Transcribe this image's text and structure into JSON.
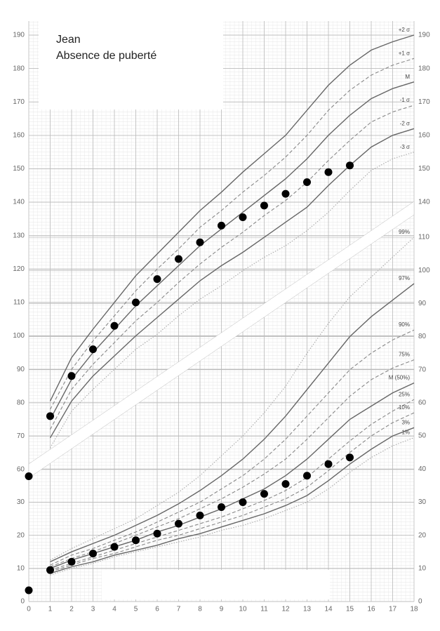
{
  "chart_data": [
    {
      "type": "line",
      "title": "Jean",
      "subtitle": "Absence de puberté",
      "x": [
        0,
        1,
        2,
        3,
        4,
        5,
        6,
        7,
        8,
        9,
        10,
        11,
        12,
        13,
        14,
        15,
        16,
        17,
        18
      ],
      "xlim": [
        0,
        18
      ],
      "ylim": [
        60,
        190
      ],
      "yticks": [
        60,
        70,
        80,
        90,
        100,
        110,
        120,
        130,
        140,
        150,
        160,
        170,
        180,
        190
      ],
      "y2lim": [
        60,
        190
      ],
      "y2ticks": [
        140,
        150,
        160,
        170,
        180,
        190
      ],
      "grid": true,
      "series": [
        {
          "name": "+2 σ",
          "color": "#666",
          "dash": "solid",
          "values": [
            null,
            80.5,
            93.5,
            102,
            110,
            118,
            124.5,
            131,
            137.5,
            143,
            149,
            154.5,
            160,
            167.5,
            175,
            181,
            185.5,
            188,
            190
          ]
        },
        {
          "name": "+1 σ",
          "color": "#888",
          "dash": "dashed",
          "values": [
            null,
            78,
            90,
            98.5,
            106,
            113.5,
            120,
            126,
            132.5,
            137.5,
            143,
            148,
            153.5,
            160,
            167.5,
            173.5,
            178,
            181,
            183
          ]
        },
        {
          "name": "M",
          "color": "#666",
          "dash": "solid",
          "values": [
            null,
            75,
            87,
            95,
            102,
            109,
            115,
            121,
            127,
            132,
            137,
            142,
            147,
            153,
            160,
            166,
            171,
            174,
            176
          ]
        },
        {
          "name": "-1 σ",
          "color": "#888",
          "dash": "dashed",
          "values": [
            null,
            72,
            84,
            91.5,
            98,
            104.5,
            110,
            116,
            121.5,
            126.5,
            131,
            136,
            140.5,
            146,
            152.5,
            158.5,
            164,
            167,
            169
          ]
        },
        {
          "name": "-2 σ",
          "color": "#666",
          "dash": "solid",
          "values": [
            null,
            69.5,
            80.5,
            88,
            94,
            100,
            105.5,
            111,
            116.5,
            121,
            125,
            129.5,
            134,
            138.5,
            145,
            151,
            156.5,
            160,
            162
          ]
        },
        {
          "name": "-3 σ",
          "color": "#aaa",
          "dash": "dotted",
          "values": [
            null,
            66.5,
            77.5,
            84,
            90,
            96,
            100.5,
            106,
            111,
            115,
            119.5,
            123.5,
            127,
            131.5,
            137,
            143.5,
            149.5,
            153,
            155
          ]
        },
        {
          "mode": "markers",
          "color": "#000",
          "values": [
            58,
            76,
            88,
            96,
            103,
            110,
            117,
            123,
            128,
            133,
            135.5,
            139,
            142.5,
            146,
            149,
            151,
            null,
            null,
            null
          ]
        }
      ]
    },
    {
      "type": "line",
      "x": [
        0,
        1,
        2,
        3,
        4,
        5,
        6,
        7,
        8,
        9,
        10,
        11,
        12,
        13,
        14,
        15,
        16,
        17,
        18
      ],
      "xlim": [
        0,
        18
      ],
      "xticks": [
        0,
        1,
        2,
        3,
        4,
        5,
        6,
        7,
        8,
        9,
        10,
        11,
        12,
        13,
        14,
        15,
        16,
        17,
        18
      ],
      "ylim": [
        0,
        110
      ],
      "yticks": [
        0,
        10,
        20,
        30
      ],
      "y2lim": [
        0,
        110
      ],
      "y2ticks": [
        0,
        10,
        20,
        30,
        40,
        50,
        60,
        70,
        80,
        90,
        100,
        110
      ],
      "grid": true,
      "series": [
        {
          "name": "99%",
          "color": "#aaa",
          "dash": "dotted",
          "values": [
            null,
            12.5,
            16,
            19,
            22,
            25,
            29,
            33,
            38,
            44,
            50,
            57,
            65,
            75,
            84,
            92,
            98,
            104,
            110
          ]
        },
        {
          "name": "97%",
          "color": "#666",
          "dash": "solid",
          "values": [
            null,
            12,
            15,
            17.5,
            20,
            23,
            26,
            29.5,
            33.5,
            38,
            43,
            49,
            56,
            64,
            72,
            80,
            86,
            91,
            96
          ]
        },
        {
          "name": "90%",
          "color": "#888",
          "dash": "dashed",
          "values": [
            null,
            11,
            14,
            16,
            18.5,
            21,
            24,
            27,
            30,
            34,
            38,
            43,
            49,
            56,
            63,
            70,
            75,
            79,
            82
          ]
        },
        {
          "name": "75%",
          "color": "#888",
          "dash": "dashed",
          "values": [
            null,
            10.5,
            13,
            15,
            17.5,
            20,
            22.5,
            25,
            28,
            31,
            34.5,
            38.5,
            43,
            49,
            55.5,
            62,
            67,
            70.5,
            73
          ]
        },
        {
          "name": "M (50%)",
          "color": "#666",
          "dash": "solid",
          "values": [
            null,
            10,
            12.5,
            14.5,
            16.5,
            18.5,
            21,
            23,
            25.5,
            28,
            31,
            34,
            38,
            43,
            49,
            55,
            59,
            63,
            66
          ]
        },
        {
          "name": "25%",
          "color": "#888",
          "dash": "dashed",
          "values": [
            null,
            9.5,
            11.5,
            13.5,
            15.5,
            17.5,
            19.5,
            21.5,
            23.5,
            25.5,
            28,
            30.5,
            33.5,
            37.5,
            43,
            48.5,
            53.5,
            57.5,
            61
          ]
        },
        {
          "name": "10%",
          "color": "#888",
          "dash": "dashed",
          "values": [
            null,
            9,
            11,
            13,
            14.5,
            16.5,
            18.5,
            20,
            22,
            24,
            26,
            28.5,
            31,
            34.5,
            39.5,
            45,
            50,
            54,
            57
          ]
        },
        {
          "name": "3%",
          "color": "#666",
          "dash": "solid",
          "values": [
            null,
            8.5,
            10.5,
            12,
            14,
            15.5,
            17,
            19,
            20.5,
            22.5,
            24.5,
            26.5,
            29,
            32,
            36.5,
            41.5,
            46,
            50,
            52.5
          ]
        },
        {
          "name": "1%",
          "color": "#aaa",
          "dash": "dotted",
          "values": [
            null,
            8,
            10,
            11.5,
            13.5,
            15,
            16.5,
            18,
            19.5,
            21.5,
            23,
            25,
            27.5,
            30,
            34,
            39,
            43.5,
            47,
            49.5
          ]
        },
        {
          "mode": "markers",
          "color": "#000",
          "values": [
            3.4,
            9.5,
            12,
            14.5,
            16.5,
            18.5,
            20.5,
            23.5,
            26,
            28.5,
            30,
            32.5,
            35.5,
            38,
            41.5,
            43.5,
            null,
            null,
            null
          ]
        }
      ]
    }
  ]
}
